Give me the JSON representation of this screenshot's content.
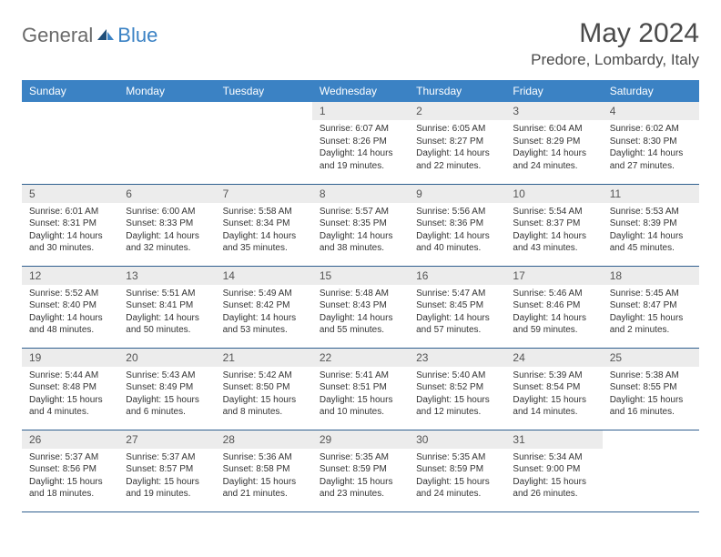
{
  "brand": {
    "general": "General",
    "blue": "Blue"
  },
  "title": "May 2024",
  "location": "Predore, Lombardy, Italy",
  "colors": {
    "header_bg": "#3b82c4",
    "header_text": "#ffffff",
    "daynum_bg": "#ececec",
    "daynum_text": "#555555",
    "cell_border": "#2f5f8f",
    "body_text": "#333333",
    "title_text": "#4a4a4a"
  },
  "weekdays": [
    "Sunday",
    "Monday",
    "Tuesday",
    "Wednesday",
    "Thursday",
    "Friday",
    "Saturday"
  ],
  "weeks": [
    [
      {
        "day": "",
        "lines": [
          "",
          "",
          "",
          ""
        ]
      },
      {
        "day": "",
        "lines": [
          "",
          "",
          "",
          ""
        ]
      },
      {
        "day": "",
        "lines": [
          "",
          "",
          "",
          ""
        ]
      },
      {
        "day": "1",
        "lines": [
          "Sunrise: 6:07 AM",
          "Sunset: 8:26 PM",
          "Daylight: 14 hours",
          "and 19 minutes."
        ]
      },
      {
        "day": "2",
        "lines": [
          "Sunrise: 6:05 AM",
          "Sunset: 8:27 PM",
          "Daylight: 14 hours",
          "and 22 minutes."
        ]
      },
      {
        "day": "3",
        "lines": [
          "Sunrise: 6:04 AM",
          "Sunset: 8:29 PM",
          "Daylight: 14 hours",
          "and 24 minutes."
        ]
      },
      {
        "day": "4",
        "lines": [
          "Sunrise: 6:02 AM",
          "Sunset: 8:30 PM",
          "Daylight: 14 hours",
          "and 27 minutes."
        ]
      }
    ],
    [
      {
        "day": "5",
        "lines": [
          "Sunrise: 6:01 AM",
          "Sunset: 8:31 PM",
          "Daylight: 14 hours",
          "and 30 minutes."
        ]
      },
      {
        "day": "6",
        "lines": [
          "Sunrise: 6:00 AM",
          "Sunset: 8:33 PM",
          "Daylight: 14 hours",
          "and 32 minutes."
        ]
      },
      {
        "day": "7",
        "lines": [
          "Sunrise: 5:58 AM",
          "Sunset: 8:34 PM",
          "Daylight: 14 hours",
          "and 35 minutes."
        ]
      },
      {
        "day": "8",
        "lines": [
          "Sunrise: 5:57 AM",
          "Sunset: 8:35 PM",
          "Daylight: 14 hours",
          "and 38 minutes."
        ]
      },
      {
        "day": "9",
        "lines": [
          "Sunrise: 5:56 AM",
          "Sunset: 8:36 PM",
          "Daylight: 14 hours",
          "and 40 minutes."
        ]
      },
      {
        "day": "10",
        "lines": [
          "Sunrise: 5:54 AM",
          "Sunset: 8:37 PM",
          "Daylight: 14 hours",
          "and 43 minutes."
        ]
      },
      {
        "day": "11",
        "lines": [
          "Sunrise: 5:53 AM",
          "Sunset: 8:39 PM",
          "Daylight: 14 hours",
          "and 45 minutes."
        ]
      }
    ],
    [
      {
        "day": "12",
        "lines": [
          "Sunrise: 5:52 AM",
          "Sunset: 8:40 PM",
          "Daylight: 14 hours",
          "and 48 minutes."
        ]
      },
      {
        "day": "13",
        "lines": [
          "Sunrise: 5:51 AM",
          "Sunset: 8:41 PM",
          "Daylight: 14 hours",
          "and 50 minutes."
        ]
      },
      {
        "day": "14",
        "lines": [
          "Sunrise: 5:49 AM",
          "Sunset: 8:42 PM",
          "Daylight: 14 hours",
          "and 53 minutes."
        ]
      },
      {
        "day": "15",
        "lines": [
          "Sunrise: 5:48 AM",
          "Sunset: 8:43 PM",
          "Daylight: 14 hours",
          "and 55 minutes."
        ]
      },
      {
        "day": "16",
        "lines": [
          "Sunrise: 5:47 AM",
          "Sunset: 8:45 PM",
          "Daylight: 14 hours",
          "and 57 minutes."
        ]
      },
      {
        "day": "17",
        "lines": [
          "Sunrise: 5:46 AM",
          "Sunset: 8:46 PM",
          "Daylight: 14 hours",
          "and 59 minutes."
        ]
      },
      {
        "day": "18",
        "lines": [
          "Sunrise: 5:45 AM",
          "Sunset: 8:47 PM",
          "Daylight: 15 hours",
          "and 2 minutes."
        ]
      }
    ],
    [
      {
        "day": "19",
        "lines": [
          "Sunrise: 5:44 AM",
          "Sunset: 8:48 PM",
          "Daylight: 15 hours",
          "and 4 minutes."
        ]
      },
      {
        "day": "20",
        "lines": [
          "Sunrise: 5:43 AM",
          "Sunset: 8:49 PM",
          "Daylight: 15 hours",
          "and 6 minutes."
        ]
      },
      {
        "day": "21",
        "lines": [
          "Sunrise: 5:42 AM",
          "Sunset: 8:50 PM",
          "Daylight: 15 hours",
          "and 8 minutes."
        ]
      },
      {
        "day": "22",
        "lines": [
          "Sunrise: 5:41 AM",
          "Sunset: 8:51 PM",
          "Daylight: 15 hours",
          "and 10 minutes."
        ]
      },
      {
        "day": "23",
        "lines": [
          "Sunrise: 5:40 AM",
          "Sunset: 8:52 PM",
          "Daylight: 15 hours",
          "and 12 minutes."
        ]
      },
      {
        "day": "24",
        "lines": [
          "Sunrise: 5:39 AM",
          "Sunset: 8:54 PM",
          "Daylight: 15 hours",
          "and 14 minutes."
        ]
      },
      {
        "day": "25",
        "lines": [
          "Sunrise: 5:38 AM",
          "Sunset: 8:55 PM",
          "Daylight: 15 hours",
          "and 16 minutes."
        ]
      }
    ],
    [
      {
        "day": "26",
        "lines": [
          "Sunrise: 5:37 AM",
          "Sunset: 8:56 PM",
          "Daylight: 15 hours",
          "and 18 minutes."
        ]
      },
      {
        "day": "27",
        "lines": [
          "Sunrise: 5:37 AM",
          "Sunset: 8:57 PM",
          "Daylight: 15 hours",
          "and 19 minutes."
        ]
      },
      {
        "day": "28",
        "lines": [
          "Sunrise: 5:36 AM",
          "Sunset: 8:58 PM",
          "Daylight: 15 hours",
          "and 21 minutes."
        ]
      },
      {
        "day": "29",
        "lines": [
          "Sunrise: 5:35 AM",
          "Sunset: 8:59 PM",
          "Daylight: 15 hours",
          "and 23 minutes."
        ]
      },
      {
        "day": "30",
        "lines": [
          "Sunrise: 5:35 AM",
          "Sunset: 8:59 PM",
          "Daylight: 15 hours",
          "and 24 minutes."
        ]
      },
      {
        "day": "31",
        "lines": [
          "Sunrise: 5:34 AM",
          "Sunset: 9:00 PM",
          "Daylight: 15 hours",
          "and 26 minutes."
        ]
      },
      {
        "day": "",
        "lines": [
          "",
          "",
          "",
          ""
        ]
      }
    ]
  ]
}
